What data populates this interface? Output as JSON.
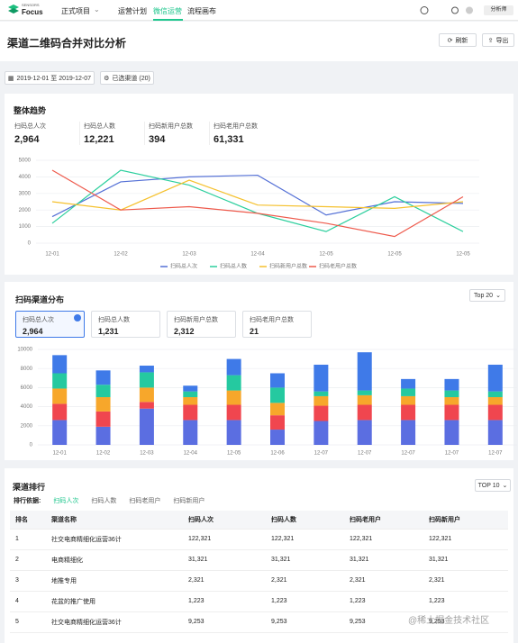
{
  "nav": {
    "logo_small": "SENSORS",
    "logo": "Focus",
    "project": "正式项目",
    "items": [
      "运营计划",
      "微信运营",
      "流程画布"
    ],
    "user": "分析师"
  },
  "header": {
    "title": "渠道二维码合并对比分析",
    "refresh": "刷新",
    "export": "导出"
  },
  "filters": {
    "date_range": "2019-12-01 至 2019-12-07",
    "channels": "已选渠道 (20)"
  },
  "trend": {
    "title": "整体趋势",
    "kpis": [
      {
        "label": "扫码总人次",
        "value": "2,964"
      },
      {
        "label": "扫码总人数",
        "value": "12,221"
      },
      {
        "label": "扫码新用户总数",
        "value": "394"
      },
      {
        "label": "扫码老用户总数",
        "value": "61,331"
      }
    ]
  },
  "distribution": {
    "title": "扫码渠道分布",
    "top": "Top 20",
    "metrics": [
      {
        "label": "扫码总人次",
        "value": "2,964"
      },
      {
        "label": "扫码总人数",
        "value": "1,231"
      },
      {
        "label": "扫码新用户总数",
        "value": "2,312"
      },
      {
        "label": "扫码老用户总数",
        "value": "21"
      }
    ]
  },
  "ranking": {
    "title": "渠道排行",
    "top": "TOP 10",
    "sort_label": "排行依据:",
    "sort_tabs": [
      "扫码人次",
      "扫码人数",
      "扫码老用户",
      "扫码新用户"
    ],
    "table": {
      "headers": [
        "排名",
        "渠道名称",
        "扫码人次",
        "扫码人数",
        "扫码老用户",
        "扫码新用户"
      ],
      "rows": [
        [
          "1",
          "社交电商精细化运营36计",
          "122,321",
          "122,321",
          "122,321",
          "122,321"
        ],
        [
          "2",
          "电商精细化",
          "31,321",
          "31,321",
          "31,321",
          "31,321"
        ],
        [
          "3",
          "地推专用",
          "2,321",
          "2,321",
          "2,321",
          "2,321"
        ],
        [
          "4",
          "花盆的推广使用",
          "1,223",
          "1,223",
          "1,223",
          "1,223"
        ],
        [
          "5",
          "社交电商精细化运营36计",
          "9,253",
          "9,253",
          "9,253",
          "9,253"
        ]
      ]
    },
    "watermark": "@稀土掘金技术社区"
  },
  "chart_data": [
    {
      "type": "line",
      "categories": [
        "12-01",
        "12-02",
        "12-03",
        "12-04",
        "12-05",
        "12-05",
        "12-05"
      ],
      "series": [
        {
          "name": "扫码总人次",
          "color": "#5470d6",
          "values": [
            1600,
            3700,
            4000,
            4100,
            1700,
            2500,
            2400
          ]
        },
        {
          "name": "扫码总人数",
          "color": "#2ccf9d",
          "values": [
            1200,
            4400,
            3500,
            1800,
            700,
            2800,
            700
          ]
        },
        {
          "name": "扫码新用户总数",
          "color": "#f5c12e",
          "values": [
            2500,
            2000,
            3800,
            2300,
            2200,
            2100,
            2500
          ]
        },
        {
          "name": "扫码老用户总数",
          "color": "#ee5a4c",
          "values": [
            4400,
            2000,
            2200,
            1800,
            1200,
            400,
            2800
          ]
        }
      ],
      "ylim": [
        0,
        5000
      ],
      "yticks": [
        0,
        1000,
        2000,
        3000,
        4000,
        5000
      ],
      "grid": true
    },
    {
      "type": "bar",
      "stacked": true,
      "categories": [
        "12-01",
        "12-02",
        "12-03",
        "12-04",
        "12-05",
        "12-06",
        "12-07",
        "12-07",
        "12-07",
        "12-07",
        "12-07"
      ],
      "series": [
        {
          "color": "#5b6ee1",
          "values": [
            2600,
            1900,
            3800,
            2600,
            2600,
            1600,
            2500,
            2600,
            2600,
            2600,
            2600
          ]
        },
        {
          "color": "#f0464f",
          "values": [
            1700,
            1600,
            700,
            1600,
            1600,
            1500,
            1600,
            1600,
            1600,
            1600,
            1600
          ]
        },
        {
          "color": "#f7a72b",
          "values": [
            1600,
            1500,
            1500,
            800,
            1500,
            1300,
            1000,
            1000,
            900,
            800,
            800
          ]
        },
        {
          "color": "#25c9a0",
          "values": [
            1600,
            1300,
            1600,
            600,
            1600,
            1600,
            500,
            500,
            800,
            700,
            600
          ]
        },
        {
          "color": "#3f7ae8",
          "values": [
            1900,
            1500,
            700,
            600,
            1700,
            1500,
            2800,
            4000,
            1000,
            1200,
            2800
          ]
        }
      ],
      "ylim": [
        0,
        10000
      ],
      "yticks": [
        0,
        2000,
        4000,
        6000,
        8000,
        10000
      ],
      "grid": true
    }
  ]
}
